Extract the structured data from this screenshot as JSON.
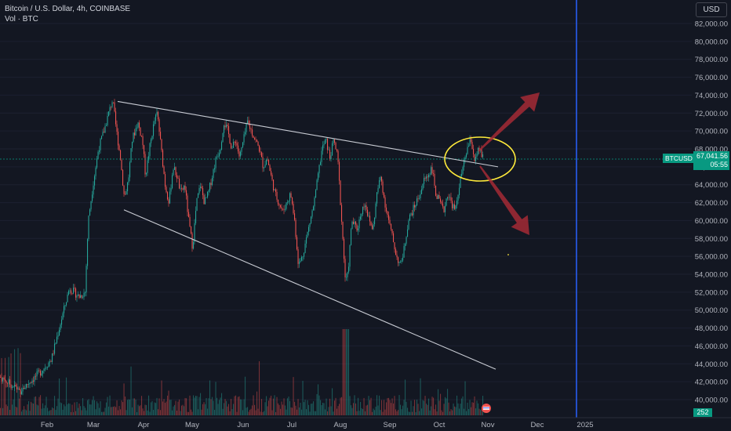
{
  "header": {
    "symbol_title": "Bitcoin / U.S. Dollar, 4h, COINBASE",
    "volume_label": "Vol · BTC",
    "currency_button": "USD"
  },
  "price_axis": {
    "ticks": [
      "82,000.00",
      "80,000.00",
      "78,000.00",
      "76,000.00",
      "74,000.00",
      "72,000.00",
      "70,000.00",
      "68,000.00",
      "66,000.00",
      "64,000.00",
      "62,000.00",
      "60,000.00",
      "58,000.00",
      "56,000.00",
      "54,000.00",
      "52,000.00",
      "50,000.00",
      "48,000.00",
      "46,000.00",
      "44,000.00",
      "42,000.00",
      "40,000.00"
    ],
    "last_price": "67,041.56",
    "countdown": "05:55",
    "symbol_tag": "BTCUSD",
    "volume_tag": "252"
  },
  "time_axis": {
    "ticks": [
      "Feb",
      "Mar",
      "Apr",
      "May",
      "Jun",
      "Jul",
      "Aug",
      "Sep",
      "Oct",
      "Nov",
      "Dec",
      "2025"
    ]
  },
  "colors": {
    "background": "#131722",
    "up": "#26a69a",
    "down": "#ef5350",
    "trendline": "#c9ccd4",
    "annotation_ellipse": "#ffeb3b",
    "arrow": "#a52a35",
    "year_marker": "#2962ff"
  },
  "chart_data": {
    "type": "candlestick",
    "ylim": [
      39000,
      83500
    ],
    "price_keypoints": [
      [
        0,
        42500
      ],
      [
        25,
        41000
      ],
      [
        50,
        43000
      ],
      [
        65,
        44500
      ],
      [
        75,
        48000
      ],
      [
        88,
        52500
      ],
      [
        100,
        51500
      ],
      [
        108,
        52000
      ],
      [
        112,
        60000
      ],
      [
        118,
        64000
      ],
      [
        125,
        68000
      ],
      [
        132,
        70000
      ],
      [
        138,
        72000
      ],
      [
        143,
        73500
      ],
      [
        148,
        70000
      ],
      [
        153,
        67000
      ],
      [
        158,
        62500
      ],
      [
        163,
        64500
      ],
      [
        168,
        69000
      ],
      [
        175,
        71000
      ],
      [
        181,
        69000
      ],
      [
        185,
        65000
      ],
      [
        190,
        68000
      ],
      [
        196,
        71000
      ],
      [
        200,
        72000
      ],
      [
        205,
        68000
      ],
      [
        210,
        64000
      ],
      [
        215,
        62000
      ],
      [
        220,
        66000
      ],
      [
        225,
        65000
      ],
      [
        230,
        63000
      ],
      [
        235,
        64000
      ],
      [
        240,
        60000
      ],
      [
        245,
        57000
      ],
      [
        250,
        62000
      ],
      [
        255,
        64000
      ],
      [
        260,
        62000
      ],
      [
        265,
        63000
      ],
      [
        270,
        65000
      ],
      [
        275,
        67000
      ],
      [
        280,
        68000
      ],
      [
        285,
        71000
      ],
      [
        290,
        70000
      ],
      [
        295,
        68000
      ],
      [
        300,
        69000
      ],
      [
        305,
        67000
      ],
      [
        310,
        69000
      ],
      [
        315,
        71000
      ],
      [
        320,
        70000
      ],
      [
        325,
        69000
      ],
      [
        330,
        68000
      ],
      [
        335,
        66000
      ],
      [
        340,
        67000
      ],
      [
        345,
        65000
      ],
      [
        350,
        63000
      ],
      [
        355,
        62000
      ],
      [
        360,
        61000
      ],
      [
        365,
        62000
      ],
      [
        370,
        63000
      ],
      [
        375,
        60000
      ],
      [
        380,
        55000
      ],
      [
        385,
        56000
      ],
      [
        390,
        58000
      ],
      [
        395,
        60000
      ],
      [
        400,
        62000
      ],
      [
        405,
        65000
      ],
      [
        410,
        68000
      ],
      [
        415,
        69000
      ],
      [
        420,
        67000
      ],
      [
        425,
        69000
      ],
      [
        430,
        67000
      ],
      [
        435,
        60000
      ],
      [
        440,
        53000
      ],
      [
        443,
        54000
      ],
      [
        448,
        60000
      ],
      [
        455,
        59000
      ],
      [
        460,
        61000
      ],
      [
        465,
        62000
      ],
      [
        470,
        60000
      ],
      [
        475,
        59000
      ],
      [
        480,
        63000
      ],
      [
        485,
        65000
      ],
      [
        490,
        62000
      ],
      [
        495,
        60000
      ],
      [
        500,
        58000
      ],
      [
        505,
        56000
      ],
      [
        510,
        55000
      ],
      [
        515,
        57000
      ],
      [
        520,
        60000
      ],
      [
        525,
        61000
      ],
      [
        530,
        62000
      ],
      [
        535,
        63000
      ],
      [
        540,
        64500
      ],
      [
        545,
        65000
      ],
      [
        550,
        66000
      ],
      [
        555,
        63000
      ],
      [
        560,
        62000
      ],
      [
        565,
        61000
      ],
      [
        570,
        63000
      ],
      [
        575,
        62000
      ],
      [
        580,
        61000
      ],
      [
        585,
        64000
      ],
      [
        590,
        66000
      ],
      [
        595,
        68000
      ],
      [
        600,
        69000
      ],
      [
        605,
        66500
      ],
      [
        610,
        68000
      ],
      [
        615,
        67000
      ]
    ],
    "volume_range": [
      0.05,
      0.55
    ],
    "trendlines": [
      {
        "from": [
          150,
          73300
        ],
        "to": [
          635,
          66000
        ]
      },
      {
        "from": [
          158,
          61200
        ],
        "to": [
          632,
          43400
        ]
      }
    ],
    "annotations": {
      "ellipse": {
        "cx": 612,
        "cy": 203,
        "rx": 45,
        "ry": 28
      },
      "arrows": [
        {
          "from": [
            610,
            193
          ],
          "to": [
            688,
            118
          ]
        },
        {
          "from": [
            612,
            212
          ],
          "to": [
            675,
            300
          ]
        }
      ],
      "year_marker_x": 735,
      "last_price_line_y": 203
    }
  }
}
